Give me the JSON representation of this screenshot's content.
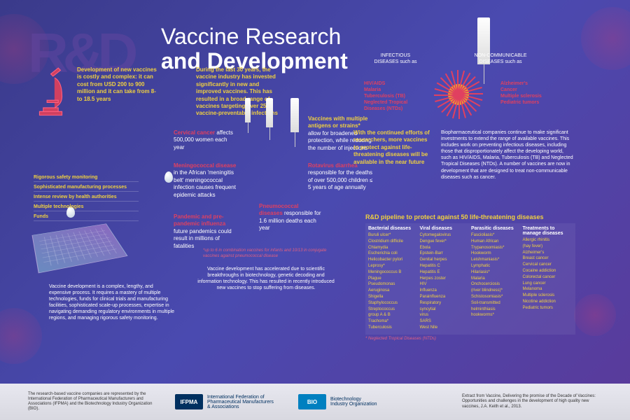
{
  "title_l1": "Vaccine Research",
  "title_l2": "and Development",
  "rd": "R&D",
  "dev_callout": "Development of new vaccines is costly and complex: it can cost from USD 200 to 900 million and it can take from 8- to 18.5 years",
  "thirty_years": "During the last 30 years, the vaccine industry has invested significantly in new and improved vaccines. This has resulted in a broad range of vaccines targeting over 25 vaccine-preventable infections",
  "antigens_h": "Vaccines with multiple antigens or strains*",
  "antigens_b": "allow for broadened protection, while reducing the number of injections",
  "cervical_h": "Cervical cancer",
  "cervical_b": "affects 500,000 women each year",
  "mening_h": "Meningococcal disease",
  "mening_b": "in the African 'meningitis belt' meningococcal infection causes frequent epidemic attacks",
  "rota_h": "Rotavirus diarrhea",
  "rota_b": "responsible for the deaths of over 500,000 children ≤ 5 years of age annually",
  "pandemic_h": "Pandemic and pre-pandemic influenza",
  "pandemic_b": "future pandemics could result in millions of fatalities",
  "pneumo_h": "Pneumococcal diseases",
  "pneumo_b": "responsible for 1.6 million deaths each year",
  "disclaimer": "*up to 6 in combination vaccines for infants and 10/13 in conjugate vaccines against pneumococcal disease",
  "maze_labels": [
    "Rigorous safety monitoring",
    "Sophisticated manufacturing processes",
    "Intense review by health authorities",
    "Multiple technologies",
    "Funds"
  ],
  "vacc_dev": "Vaccine development is a complex, lengthy, and expensive process. It requires a mastery of multiple technologies, funds for clinical trials and manufacturing facilities, sophisticated scale-up processes, expertise in navigating demanding regulatory environments in multiple regions, and managing rigorous safety monitoring.",
  "breakthroughs": "Vaccine development has accelerated due to scientific breakthroughs in biotechnology, genetic decoding and information technology. This has resulted in recently introduced new vaccines to stop suffering from diseases.",
  "inf_label": "INFECTIOUS DISEASES such as",
  "ncd_label": "NON-COMMUNICABLE DISEASES such as",
  "inf_list": "HIV/AIDS\nMalaria\nTuberculosis (TB)\nNeglected Tropical Diseases (NTDs)",
  "ncd_list": "Alzheimer's\nCancer\nMultiple sclerosis\nPediatric tumors",
  "continued": "With the continued efforts of researchers, more vaccines to protect against life-threatening diseases will be available in the near future",
  "biopharm": "Biopharmaceutical companies continue to make significant investments to extend the range of available vaccines. This includes work on preventing infectious diseases, including those that disproportionately affect the developing world, such as HIV/AIDS, Malaria, Tuberculosis (TB) and Neglected Tropical Diseases (NTDs). A number of vaccines are now in development that are designed to treat non-communicable diseases such as cancer.",
  "pipe_title": "R&D pipeline to protect against 50 life-threatening diseases",
  "pipe_cols": [
    {
      "h": "Bacterial diseases",
      "items": [
        "Buruli ulcer*",
        "Clostridium difficile",
        "Chlamydia",
        "Escherichia coli",
        "Helicobacter pylori",
        "Leprosy*",
        "Meningococcus B",
        "Plague",
        "Pseudomonas",
        "Aeruginosa",
        "Shigella",
        "Staphylococcus",
        "Streptococcus",
        "group A & B",
        "Trachoma*",
        "Tuberculosis"
      ]
    },
    {
      "h": "Viral diseases",
      "items": [
        "Cytomegalovirus",
        "Dengue fever*",
        "Ebola",
        "Epstein-Barr",
        "Genital herpes",
        "Hepatitis C",
        "Hepatitis E",
        "Herpes zoster",
        "HIV",
        "Influenza",
        "Parainfluenza",
        "Respiratory",
        "syncytial",
        "virus",
        "SARS",
        "West Nile"
      ]
    },
    {
      "h": "Parasitic diseases",
      "items": [
        "Fascioliasis*",
        "Human African",
        "Trypanosomiasis*",
        "Hookworm",
        "Leishmaniasis*",
        "Lymphatic",
        "Hilariasis*",
        "Malaria",
        "Onchocerciosis",
        "(river blindness)*",
        "Schistosomiasis*",
        "Soil-transmitted",
        "helminthiasis",
        "hookworms*"
      ]
    },
    {
      "h": "Treatments to manage diseases",
      "items": [
        "Allergic rhinitis",
        "(hay fever)",
        "Alzheimer's",
        "Breast cancer",
        "Cervical cancer",
        "Cocaine addiction",
        "Colorectal cancer",
        "Lung cancer",
        "Melanoma",
        "Multiple sclerosis",
        "Nicotine addiction",
        "Pediatric tumors"
      ]
    }
  ],
  "pipe_note": "* Neglected Tropical Diseases (NTDs)",
  "footer_left": "The research-based vaccine companies are represented by the International Federation of Pharmaceutical Manufacturers and Associations (IFPMA) and the Biotechnology Industry Organization (BIO).",
  "ifpma": "IFPMA",
  "ifpma_full": "International Federation of Pharmaceutical Manufacturers & Associations",
  "bio": "BIO",
  "bio_full": "Biotechnology Industry Organization",
  "footer_right": "Extract from Vaccine, Delivering the promise of the Decade of Vaccines: Opportunities and challenges in the development of high quality new vaccines, J.A. Keith et al., 2013.",
  "colors": {
    "bg": "#4a4ab0",
    "yellow": "#f0d040",
    "red": "#e04060",
    "white": "#ffffff"
  }
}
